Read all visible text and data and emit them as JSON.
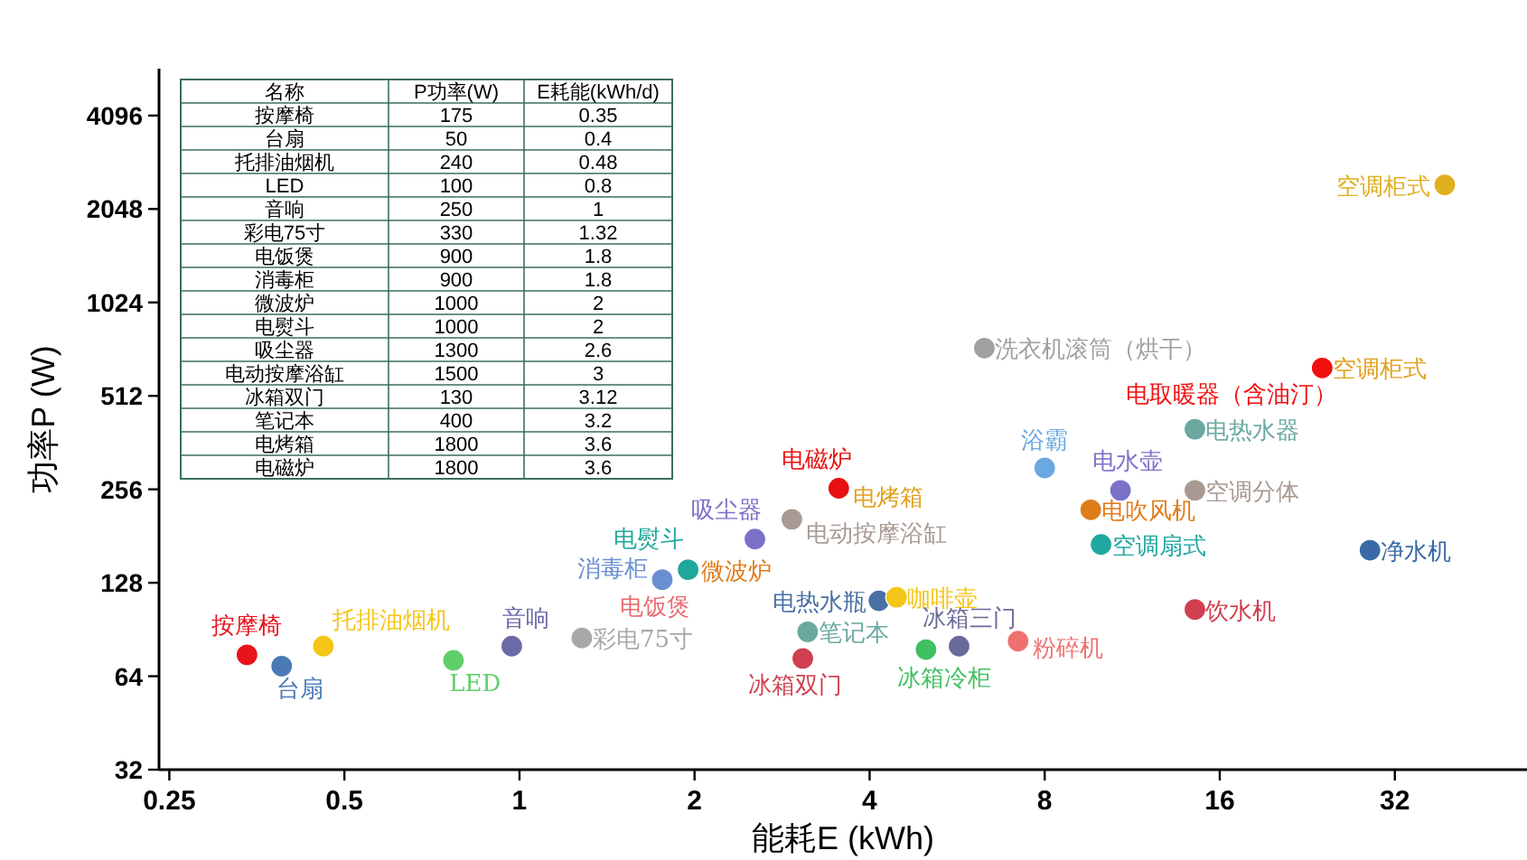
{
  "chart_data": [
    {
      "type": "scatter",
      "xlabel": "能耗E (kWh)",
      "ylabel": "功率P (W)",
      "log": "xy",
      "xlim": [
        0.24,
        54
      ],
      "ylim": [
        32,
        5800
      ],
      "xticks": [
        0.25,
        0.5,
        1,
        2,
        4,
        8,
        16,
        32
      ],
      "yticks": [
        32,
        64,
        128,
        256,
        512,
        1024,
        2048,
        4096
      ],
      "marker": "circle",
      "series": [
        {
          "name": "按摩椅",
          "color": "#e8141c",
          "x": [
            0.34
          ],
          "values": [
            75
          ]
        },
        {
          "name": "台扇",
          "color": "#4a7ab5",
          "x": [
            0.39
          ],
          "values": [
            69
          ]
        },
        {
          "name": "托排油烟机",
          "color": "#f5c518",
          "x": [
            0.46
          ],
          "values": [
            80
          ]
        },
        {
          "name": "LED",
          "color": "#5fcf6a",
          "x": [
            0.77
          ],
          "values": [
            72
          ]
        },
        {
          "name": "音响",
          "color": "#6a6aa8",
          "x": [
            0.97
          ],
          "values": [
            80
          ]
        },
        {
          "name": "彩电75寸",
          "color": "#a8a8a8",
          "x": [
            1.28
          ],
          "values": [
            85
          ]
        },
        {
          "name": "电饭煲",
          "color": "#e86a70",
          "x": [
            null
          ],
          "values": [
            null
          ]
        },
        {
          "name": "消毒柜",
          "color": "#6a8fd0",
          "x": [
            1.76
          ],
          "values": [
            131
          ]
        },
        {
          "name": "微波炉",
          "color": "#e07b1a",
          "x": [
            null
          ],
          "values": [
            null
          ]
        },
        {
          "name": "电熨斗",
          "color": "#1fa79a",
          "x": [
            1.95
          ],
          "values": [
            141
          ]
        },
        {
          "name": "吸尘器",
          "color": "#7a72c8",
          "x": [
            2.54
          ],
          "values": [
            177
          ]
        },
        {
          "name": "电动按摩浴缸",
          "color": "#a89a92",
          "x": [
            2.94
          ],
          "values": [
            205
          ]
        },
        {
          "name": "电烤箱",
          "color": "#e0a020",
          "x": [
            null
          ],
          "values": [
            null
          ]
        },
        {
          "name": "电磁炉",
          "color": "#e81010",
          "x": [
            3.54
          ],
          "values": [
            258
          ]
        },
        {
          "name": "电热水瓶",
          "color": "#4a6fa5",
          "x": [
            4.15
          ],
          "values": [
            112
          ]
        },
        {
          "name": "咖啡壶",
          "color": "#f5c518",
          "x": [
            4.45
          ],
          "values": [
            115
          ]
        },
        {
          "name": "笔记本",
          "color": "#6aa8a0",
          "x": [
            3.13
          ],
          "values": [
            89
          ]
        },
        {
          "name": "冰箱双门",
          "color": "#d04050",
          "x": [
            3.07
          ],
          "values": [
            73
          ]
        },
        {
          "name": "冰箱冷柜",
          "color": "#40c060",
          "x": [
            5.0
          ],
          "values": [
            78
          ]
        },
        {
          "name": "冰箱三门",
          "color": "#6a6a9a",
          "x": [
            5.7
          ],
          "values": [
            80
          ]
        },
        {
          "name": "粉碎机",
          "color": "#f07070",
          "x": [
            7.2
          ],
          "values": [
            83
          ]
        },
        {
          "name": "洗衣机滚筒（烘干）",
          "color": "#a0a0a0",
          "x": [
            6.3
          ],
          "values": [
            730
          ]
        },
        {
          "name": "浴霸",
          "color": "#6aa8e0",
          "x": [
            8.0
          ],
          "values": [
            300
          ]
        },
        {
          "name": "电水壶",
          "color": "#7a72c8",
          "x": [
            10.8
          ],
          "values": [
            254
          ]
        },
        {
          "name": "电吹风机",
          "color": "#e07b1a",
          "x": [
            9.6
          ],
          "values": [
            220
          ]
        },
        {
          "name": "空调分体",
          "color": "#a89a92",
          "x": [
            14.5
          ],
          "values": [
            254
          ]
        },
        {
          "name": "电热水器",
          "color": "#6aa8a0",
          "x": [
            14.5
          ],
          "values": [
            400
          ]
        },
        {
          "name": "空调扇式",
          "color": "#20a8a0",
          "x": [
            10.0
          ],
          "values": [
            170
          ]
        },
        {
          "name": "饮水机",
          "color": "#d04050",
          "x": [
            14.5
          ],
          "values": [
            105
          ]
        },
        {
          "name": "净水机",
          "color": "#3a6aa5",
          "x": [
            29
          ],
          "values": [
            163
          ]
        },
        {
          "name": "空调柜式",
          "color": "#e0a020",
          "x": [
            null
          ],
          "values": [
            null
          ]
        },
        {
          "name": "电取暖器（含油汀）",
          "color": "#f01010",
          "x": [
            24
          ],
          "values": [
            630
          ]
        },
        {
          "name": "空调柜式",
          "color": "#e0b020",
          "x": [
            39
          ],
          "values": [
            2450
          ]
        }
      ]
    },
    {
      "type": "other",
      "annotations": [
        "名称",
        "P功率(W)",
        "E耗能(kWh/d)",
        "按摩椅",
        "175",
        "0.35",
        "台扇",
        "50",
        "0.4",
        "托排油烟机",
        "240",
        "0.48",
        "LED",
        "100",
        "0.8",
        "音响",
        "250",
        "1",
        "彩电75寸",
        "330",
        "1.32",
        "电饭煲",
        "900",
        "1.8",
        "消毒柜",
        "900",
        "1.8",
        "微波炉",
        "1000",
        "2",
        "电熨斗",
        "1000",
        "2",
        "吸尘器",
        "1300",
        "2.6",
        "电动按摩浴缸",
        "1500",
        "3",
        "冰箱双门",
        "130",
        "3.12",
        "笔记本",
        "400",
        "3.2",
        "电烤箱",
        "1800",
        "3.6",
        "电磁炉",
        "1800",
        "3.6"
      ]
    }
  ]
}
